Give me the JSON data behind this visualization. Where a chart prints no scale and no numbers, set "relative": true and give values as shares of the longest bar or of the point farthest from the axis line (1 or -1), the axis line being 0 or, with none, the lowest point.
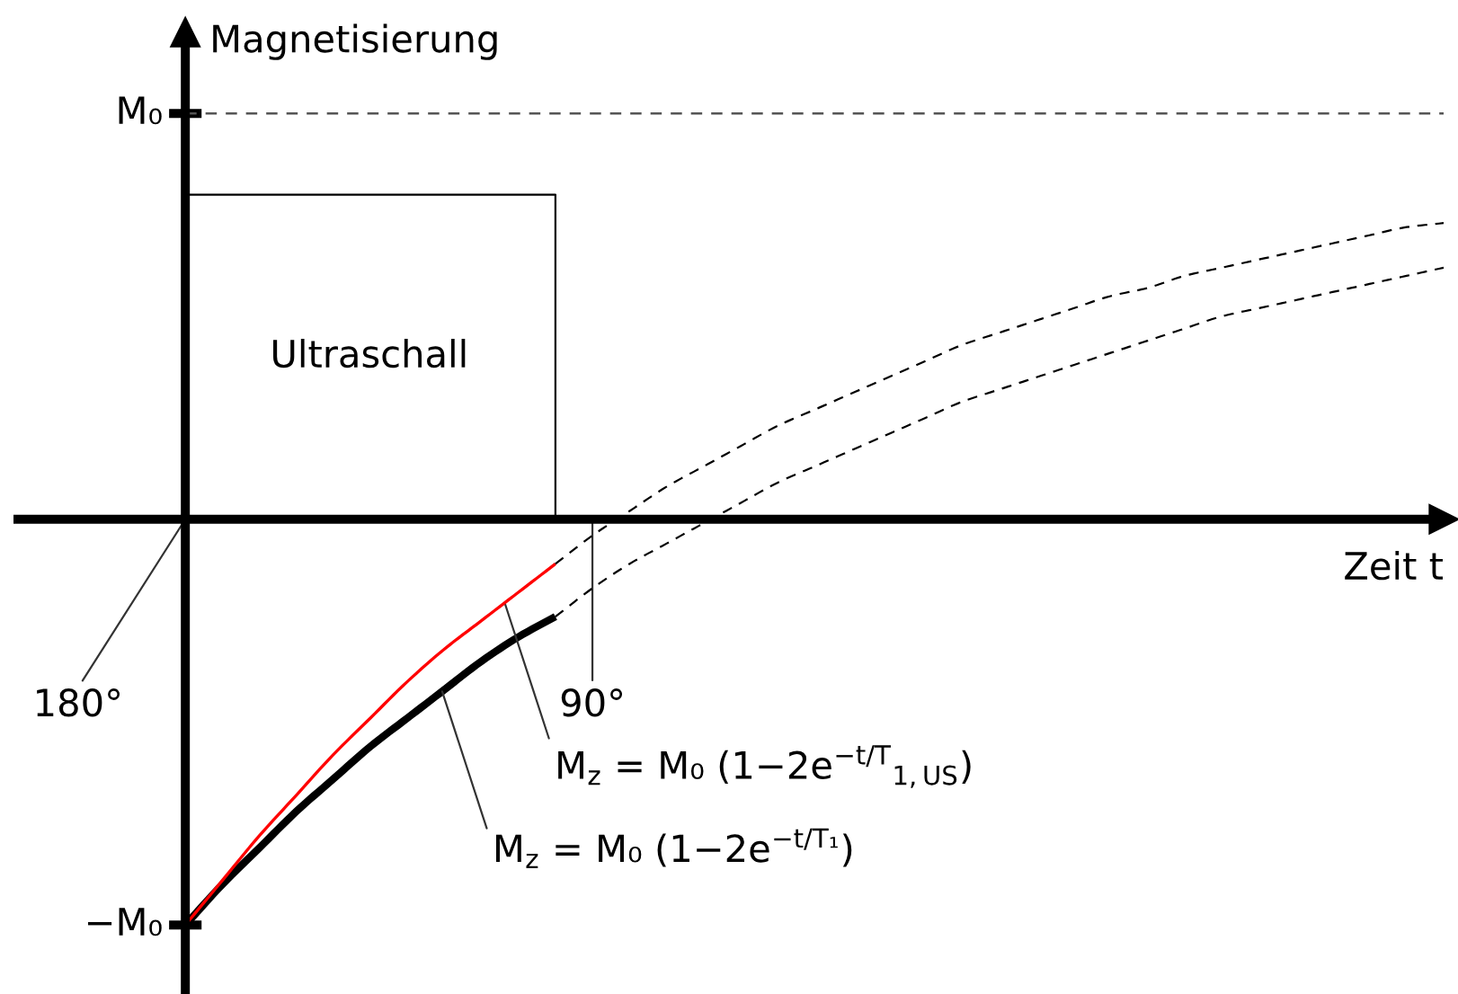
{
  "chart_data": {
    "type": "line",
    "xlabel": "Zeit t",
    "ylabel": "Magnetisierung",
    "relative": true,
    "categories": [
      null,
      null,
      null,
      null,
      null,
      null,
      null,
      null,
      null,
      null,
      null,
      null,
      null,
      null,
      null,
      null,
      null,
      null,
      null,
      null,
      null,
      null,
      null,
      null,
      null,
      null,
      null,
      null,
      null,
      null,
      null,
      null,
      null,
      null,
      null
    ],
    "series": [
      {
        "color": "#000000",
        "line_style": "solid",
        "values": [
          -1,
          -0.9,
          -0.81,
          -0.72,
          -0.64,
          -0.56,
          -0.49,
          -0.42,
          -0.35,
          -0.29,
          -0.24,
          null,
          null,
          null,
          null,
          null,
          null,
          null,
          null,
          null,
          null,
          null,
          null,
          null,
          null,
          null,
          null,
          null,
          null,
          null,
          null,
          null,
          null,
          null,
          null
        ]
      },
      {
        "color": "#ff0000",
        "line_style": "solid",
        "values": [
          -1,
          -0.89,
          -0.78,
          -0.68,
          -0.58,
          -0.49,
          -0.4,
          -0.32,
          -0.25,
          -0.18,
          -0.11,
          null,
          null,
          null,
          null,
          null,
          null,
          null,
          null,
          null,
          null,
          null,
          null,
          null,
          null,
          null,
          null,
          null,
          null,
          null,
          null,
          null,
          null,
          null,
          null
        ]
      },
      {
        "color": "#000000",
        "line_style": "dashed",
        "values": [
          null,
          null,
          null,
          null,
          null,
          null,
          null,
          null,
          null,
          null,
          -0.11,
          -0.04,
          0.02,
          0.08,
          0.13,
          0.18,
          0.23,
          0.27,
          0.31,
          0.35,
          0.39,
          0.43,
          0.46,
          0.49,
          0.52,
          0.55,
          0.57,
          0.6,
          0.62,
          0.64,
          0.66,
          0.68,
          0.7,
          0.72,
          0.73
        ]
      },
      {
        "color": "#000000",
        "line_style": "dashed",
        "values": [
          null,
          null,
          null,
          null,
          null,
          null,
          null,
          null,
          null,
          null,
          -0.24,
          -0.17,
          -0.11,
          -0.06,
          -0.01,
          0.04,
          0.09,
          0.13,
          0.17,
          0.21,
          0.25,
          0.29,
          0.32,
          0.35,
          0.38,
          0.41,
          0.44,
          0.47,
          0.5,
          0.52,
          0.54,
          0.56,
          0.58,
          0.6,
          0.62
        ]
      },
      {
        "type": "step",
        "color": "#000000",
        "line_style": "solid",
        "values": [
          0.8,
          0.8,
          0.8,
          0.8,
          0.8,
          0.8,
          0.8,
          0.8,
          0.8,
          0.8,
          0,
          null,
          null,
          null,
          null,
          null,
          null,
          null,
          null,
          null,
          null,
          null,
          null,
          null,
          null,
          null,
          null,
          null,
          null,
          null,
          null,
          null,
          null,
          null,
          null
        ]
      }
    ],
    "ref_lines": [
      {
        "axis": "y",
        "value": 1,
        "label": "M₀",
        "color": "#555555",
        "line_style": "dashed"
      }
    ],
    "annotations": [
      "Ultraschall",
      "180°",
      "90°",
      "M$_{z}$ = M₀ (1−2e$^{−t/T}$$_{1,US}$)",
      "M$_{z}$ = M₀ (1−2e$^{−t/T₁}$)",
      "−M₀"
    ]
  }
}
